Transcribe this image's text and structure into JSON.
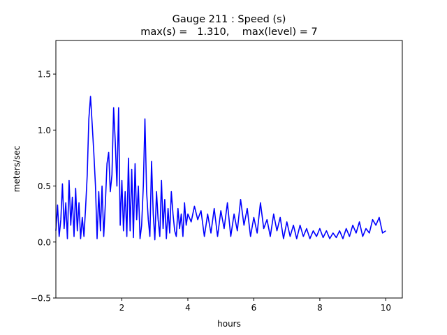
{
  "chart_data": {
    "type": "line",
    "title_line1": "Gauge 211 : Speed (s)",
    "title_line2": "max(s) =   1.310,    max(level) = 7",
    "xlabel": "hours",
    "ylabel": "meters/sec",
    "xlim": [
      0.0,
      10.5
    ],
    "ylim": [
      -0.5,
      1.8
    ],
    "xticks": [
      2,
      4,
      6,
      8,
      10
    ],
    "xtick_labels": [
      "2",
      "4",
      "6",
      "8",
      "10"
    ],
    "yticks": [
      -0.5,
      0.0,
      0.5,
      1.0,
      1.5
    ],
    "ytick_labels": [
      "−0.5",
      "0.0",
      "0.5",
      "1.0",
      "1.5"
    ],
    "grid": false,
    "series": [
      {
        "color": "#0000ff",
        "x": [
          0.0,
          0.05,
          0.1,
          0.15,
          0.2,
          0.25,
          0.3,
          0.35,
          0.4,
          0.45,
          0.5,
          0.55,
          0.6,
          0.65,
          0.7,
          0.75,
          0.8,
          0.85,
          0.9,
          0.95,
          1.0,
          1.05,
          1.1,
          1.15,
          1.2,
          1.25,
          1.3,
          1.35,
          1.4,
          1.45,
          1.5,
          1.55,
          1.6,
          1.65,
          1.7,
          1.75,
          1.8,
          1.85,
          1.9,
          1.95,
          2.0,
          2.05,
          2.1,
          2.15,
          2.2,
          2.25,
          2.3,
          2.35,
          2.4,
          2.45,
          2.5,
          2.55,
          2.6,
          2.65,
          2.7,
          2.75,
          2.8,
          2.85,
          2.9,
          2.95,
          3.0,
          3.05,
          3.1,
          3.15,
          3.2,
          3.25,
          3.3,
          3.35,
          3.4,
          3.45,
          3.5,
          3.55,
          3.6,
          3.65,
          3.7,
          3.75,
          3.8,
          3.85,
          3.9,
          3.95,
          4.0,
          4.1,
          4.2,
          4.3,
          4.4,
          4.5,
          4.6,
          4.7,
          4.8,
          4.9,
          5.0,
          5.1,
          5.2,
          5.3,
          5.4,
          5.5,
          5.6,
          5.7,
          5.8,
          5.9,
          6.0,
          6.1,
          6.2,
          6.3,
          6.4,
          6.5,
          6.6,
          6.7,
          6.8,
          6.9,
          7.0,
          7.1,
          7.2,
          7.3,
          7.4,
          7.5,
          7.6,
          7.7,
          7.8,
          7.9,
          8.0,
          8.1,
          8.2,
          8.3,
          8.4,
          8.5,
          8.6,
          8.7,
          8.8,
          8.9,
          9.0,
          9.1,
          9.2,
          9.3,
          9.4,
          9.5,
          9.6,
          9.7,
          9.8,
          9.9,
          10.0
        ],
        "y": [
          0.1,
          0.33,
          0.05,
          0.2,
          0.52,
          0.12,
          0.35,
          0.03,
          0.55,
          0.15,
          0.4,
          0.05,
          0.48,
          0.1,
          0.35,
          0.03,
          0.22,
          0.05,
          0.3,
          0.6,
          1.1,
          1.3,
          1.05,
          0.8,
          0.5,
          0.03,
          0.45,
          0.1,
          0.5,
          0.05,
          0.35,
          0.7,
          0.8,
          0.45,
          0.6,
          1.2,
          0.9,
          0.5,
          1.2,
          0.15,
          0.55,
          0.1,
          0.45,
          0.05,
          0.75,
          0.1,
          0.65,
          0.04,
          0.7,
          0.2,
          0.5,
          0.03,
          0.15,
          0.5,
          1.1,
          0.45,
          0.2,
          0.05,
          0.72,
          0.25,
          0.02,
          0.45,
          0.2,
          0.05,
          0.55,
          0.12,
          0.38,
          0.03,
          0.3,
          0.08,
          0.45,
          0.25,
          0.1,
          0.05,
          0.3,
          0.12,
          0.25,
          0.05,
          0.35,
          0.15,
          0.25,
          0.18,
          0.32,
          0.2,
          0.28,
          0.05,
          0.25,
          0.08,
          0.3,
          0.05,
          0.28,
          0.12,
          0.35,
          0.05,
          0.25,
          0.1,
          0.38,
          0.15,
          0.3,
          0.05,
          0.22,
          0.08,
          0.35,
          0.12,
          0.2,
          0.05,
          0.25,
          0.1,
          0.22,
          0.03,
          0.18,
          0.05,
          0.15,
          0.03,
          0.15,
          0.05,
          0.12,
          0.03,
          0.1,
          0.05,
          0.12,
          0.04,
          0.1,
          0.03,
          0.08,
          0.04,
          0.1,
          0.03,
          0.12,
          0.05,
          0.15,
          0.08,
          0.18,
          0.05,
          0.12,
          0.08,
          0.2,
          0.15,
          0.22,
          0.08,
          0.1
        ]
      }
    ]
  }
}
